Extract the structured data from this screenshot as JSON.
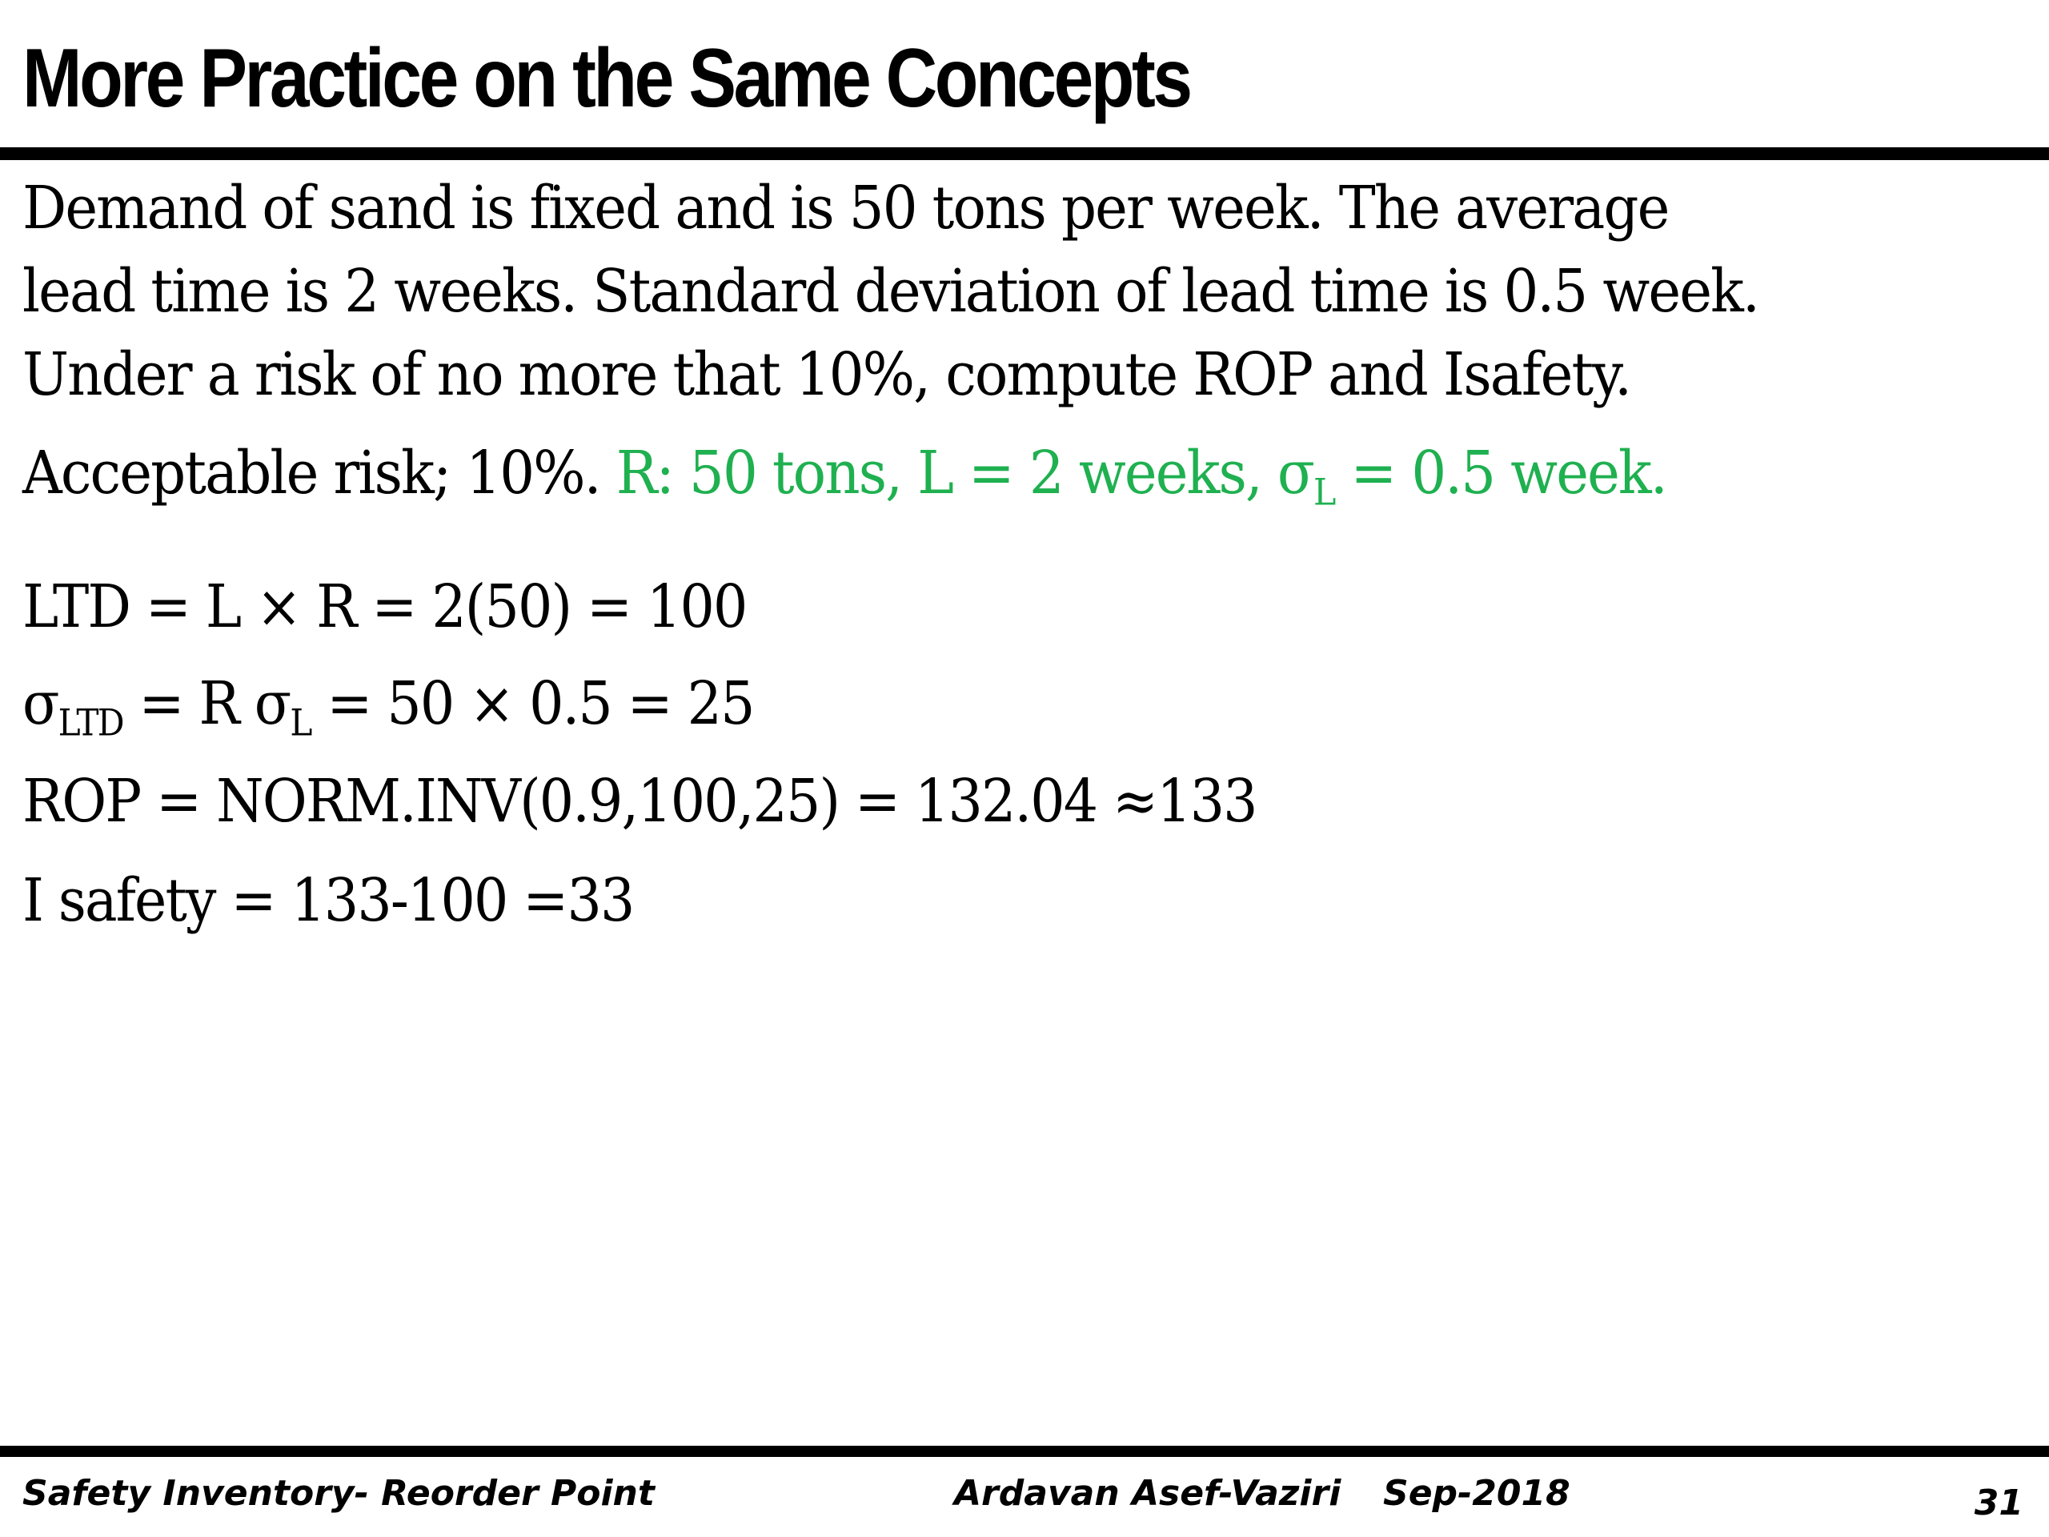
{
  "slide": {
    "title": "More Practice on the Same Concepts",
    "problem_lines": [
      "Demand of sand is fixed and is 50 tons per week. The average",
      "lead time is 2 weeks. Standard deviation of lead time is 0.5 week.",
      "Under a risk of no more that 10%, compute ROP and Isafety."
    ],
    "given": {
      "risk_text": "Acceptable risk; 10%. ",
      "r_text": "R: 50 tons,  L = 2 weeks,  ",
      "sigma_symbol": "σ",
      "sigma_sub": "L",
      "sigma_value": " = 0.5 week.",
      "highlight_color": "#1fb050"
    },
    "equations": {
      "ltd": "LTD = L × R = 2(50) = 100",
      "sigma_ltd": {
        "symbol": "σ",
        "sub": "LTD",
        "mid": " = R σ",
        "mid_sub": "L",
        "rest": " = 50  × 0.5 =  25"
      },
      "rop": "ROP = NORM.INV(0.9,100,25) = 132.04 ≈133",
      "isafety": "I safety = 133-100 =33"
    }
  },
  "footer": {
    "topic": "Safety Inventory- Reorder Point",
    "author": "Ardavan Asef-Vaziri",
    "date": "Sep-2018",
    "page_number": "31"
  }
}
